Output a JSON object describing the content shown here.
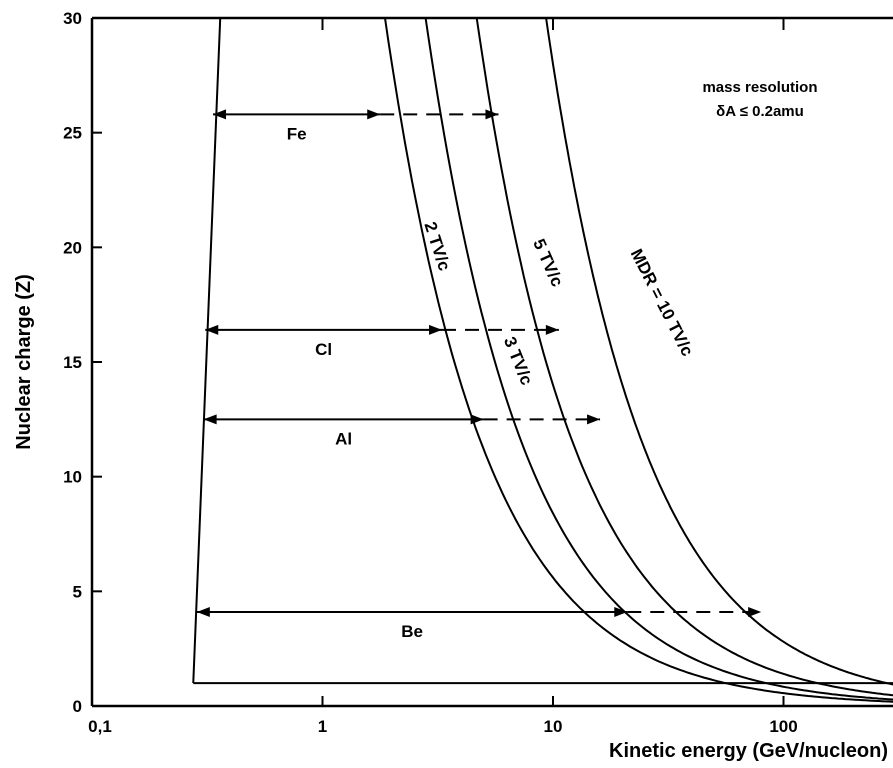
{
  "chart_data": {
    "type": "line",
    "xlabel": "Kinetic energy (GeV/nucleon)",
    "ylabel": "Nuclear charge (Z)",
    "x_scale": "log",
    "xlim": [
      0.1,
      400
    ],
    "ylim": [
      0,
      30
    ],
    "x_ticks": [
      {
        "value": 0.1,
        "label": "0,1"
      },
      {
        "value": 1,
        "label": "1"
      },
      {
        "value": 10,
        "label": "10"
      },
      {
        "value": 100,
        "label": "100"
      }
    ],
    "y_ticks": [
      {
        "value": 0,
        "label": "0"
      },
      {
        "value": 5,
        "label": "5"
      },
      {
        "value": 10,
        "label": "10"
      },
      {
        "value": 15,
        "label": "15"
      },
      {
        "value": 20,
        "label": "20"
      },
      {
        "value": 25,
        "label": "25"
      },
      {
        "value": 30,
        "label": "30"
      }
    ],
    "grid": false,
    "series": [
      {
        "name": "2 TV/c",
        "k": 56,
        "x": [
          1.87,
          2.0,
          3.0,
          5.0,
          8.0,
          12.0,
          20.0,
          40.0,
          80.0,
          150.0,
          300.0,
          400.0
        ],
        "y": [
          30.0,
          28.0,
          18.7,
          11.2,
          7.0,
          4.67,
          2.8,
          1.4,
          0.7,
          0.37,
          0.19,
          0.14
        ]
      },
      {
        "name": "3 TV/c",
        "k": 84,
        "x": [
          2.8,
          3.0,
          5.0,
          8.0,
          12.0,
          20.0,
          40.0,
          80.0,
          150.0,
          300.0,
          400.0
        ],
        "y": [
          30.0,
          28.0,
          16.8,
          10.5,
          7.0,
          4.2,
          2.1,
          1.05,
          0.56,
          0.28,
          0.21
        ]
      },
      {
        "name": "5 TV/c",
        "k": 140,
        "x": [
          4.67,
          6.0,
          8.0,
          12.0,
          20.0,
          40.0,
          80.0,
          150.0,
          300.0,
          400.0
        ],
        "y": [
          30.0,
          23.3,
          17.5,
          11.7,
          7.0,
          3.5,
          1.75,
          0.93,
          0.47,
          0.35
        ]
      },
      {
        "name": "MDR = 10 TV/c",
        "k": 280,
        "x": [
          9.33,
          12.0,
          20.0,
          40.0,
          80.0,
          150.0,
          300.0,
          400.0
        ],
        "y": [
          30.0,
          23.3,
          14.0,
          7.0,
          3.5,
          1.87,
          0.93,
          0.7
        ]
      }
    ],
    "threshold_line": {
      "x": [
        0.275,
        0.36
      ],
      "y": [
        1,
        30
      ]
    },
    "element_ranges": [
      {
        "element": "Fe",
        "z": 25.8,
        "solid": [
          0.335,
          1.78
        ],
        "dashed": [
          1.78,
          5.8
        ]
      },
      {
        "element": "Cl",
        "z": 16.4,
        "solid": [
          0.31,
          3.3
        ],
        "dashed": [
          3.3,
          10.6
        ]
      },
      {
        "element": "Al",
        "z": 12.5,
        "solid": [
          0.305,
          5.0
        ],
        "dashed": [
          5.0,
          16.0
        ]
      },
      {
        "element": "Be",
        "z": 4.1,
        "solid": [
          0.285,
          21.0
        ],
        "dashed": [
          21.0,
          80.0
        ]
      }
    ],
    "annotation": {
      "line1": "mass resolution",
      "line2": "δA ≤ 0.2amu"
    }
  }
}
